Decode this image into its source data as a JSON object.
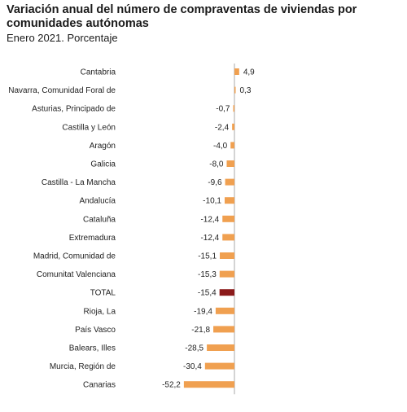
{
  "title": "Variación anual del número de compraventas de viviendas por comunidades autónomas",
  "subtitle": "Enero 2021. Porcentaje",
  "colors": {
    "bar": "#F0A050",
    "highlight": "#8B1A1A",
    "axis": "#aaaaaa"
  },
  "chart_data": {
    "type": "bar",
    "orientation": "horizontal",
    "categories": [
      "Cantabria",
      "Navarra, Comunidad Foral de",
      "Asturias, Principado de",
      "Castilla y León",
      "Aragón",
      "Galicia",
      "Castilla - La Mancha",
      "Andalucía",
      "Cataluña",
      "Extremadura",
      "Madrid, Comunidad de",
      "Comunitat Valenciana",
      "TOTAL",
      "Rioja, La",
      "País Vasco",
      "Balears, Illes",
      "Murcia, Región de",
      "Canarias"
    ],
    "values": [
      4.9,
      0.3,
      -0.7,
      -2.4,
      -4.0,
      -8.0,
      -9.6,
      -10.1,
      -12.4,
      -12.4,
      -15.1,
      -15.3,
      -15.4,
      -19.4,
      -21.8,
      -28.5,
      -30.4,
      -52.2
    ],
    "value_labels": [
      "4,9",
      "0,3",
      "-0,7",
      "-2,4",
      "-4,0",
      "-8,0",
      "-9,6",
      "-10,1",
      "-12,4",
      "-12,4",
      "-15,1",
      "-15,3",
      "-15,4",
      "-19,4",
      "-21,8",
      "-28,5",
      "-30,4",
      "-52,2"
    ],
    "highlight": "TOTAL",
    "title": "Variación anual del número de compraventas de viviendas por comunidades autónomas",
    "subtitle": "Enero 2021. Porcentaje",
    "xlabel": "",
    "ylabel": "",
    "xlim": [
      -52.2,
      4.9
    ],
    "grid": false,
    "legend": "none"
  }
}
